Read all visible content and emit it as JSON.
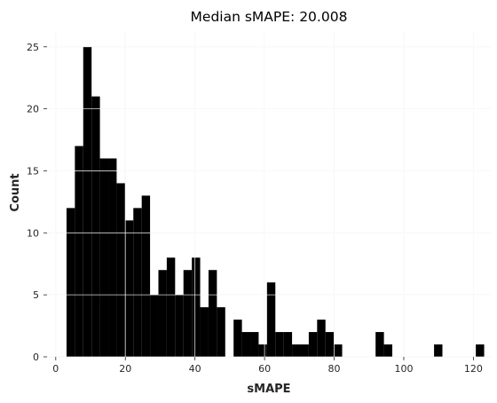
{
  "chart_data": {
    "type": "bar",
    "title": "Median sMAPE: 20.008",
    "xlabel": "sMAPE",
    "ylabel": "Count",
    "xlim": [
      -2.5,
      125
    ],
    "ylim": [
      0,
      26.2
    ],
    "xticks": [
      0,
      20,
      40,
      60,
      80,
      100,
      120
    ],
    "yticks": [
      0,
      5,
      10,
      15,
      20,
      25
    ],
    "grid": true,
    "bar_color": "#000000",
    "gridline_color": "#dcdcdc",
    "bin_width": 2.4,
    "bin_start": 3.1,
    "bins": [
      {
        "x0": 3.1,
        "x1": 5.5,
        "count": 12
      },
      {
        "x0": 5.5,
        "x1": 7.9,
        "count": 17
      },
      {
        "x0": 7.9,
        "x1": 10.3,
        "count": 25
      },
      {
        "x0": 10.3,
        "x1": 12.7,
        "count": 21
      },
      {
        "x0": 12.7,
        "x1": 15.1,
        "count": 16
      },
      {
        "x0": 15.1,
        "x1": 17.5,
        "count": 16
      },
      {
        "x0": 17.5,
        "x1": 19.9,
        "count": 14
      },
      {
        "x0": 19.9,
        "x1": 22.3,
        "count": 11
      },
      {
        "x0": 22.3,
        "x1": 24.7,
        "count": 12
      },
      {
        "x0": 24.7,
        "x1": 27.1,
        "count": 13
      },
      {
        "x0": 27.1,
        "x1": 29.5,
        "count": 5
      },
      {
        "x0": 29.5,
        "x1": 31.9,
        "count": 7
      },
      {
        "x0": 31.9,
        "x1": 34.3,
        "count": 8
      },
      {
        "x0": 34.3,
        "x1": 36.7,
        "count": 5
      },
      {
        "x0": 36.7,
        "x1": 39.1,
        "count": 7
      },
      {
        "x0": 39.1,
        "x1": 41.5,
        "count": 8
      },
      {
        "x0": 41.5,
        "x1": 43.9,
        "count": 4
      },
      {
        "x0": 43.9,
        "x1": 46.3,
        "count": 7
      },
      {
        "x0": 46.3,
        "x1": 48.7,
        "count": 4
      },
      {
        "x0": 48.7,
        "x1": 51.1,
        "count": 0
      },
      {
        "x0": 51.1,
        "x1": 53.5,
        "count": 3
      },
      {
        "x0": 53.5,
        "x1": 55.9,
        "count": 2
      },
      {
        "x0": 55.9,
        "x1": 58.3,
        "count": 2
      },
      {
        "x0": 58.3,
        "x1": 60.7,
        "count": 1
      },
      {
        "x0": 60.7,
        "x1": 63.1,
        "count": 6
      },
      {
        "x0": 63.1,
        "x1": 65.5,
        "count": 2
      },
      {
        "x0": 65.5,
        "x1": 67.9,
        "count": 2
      },
      {
        "x0": 67.9,
        "x1": 70.3,
        "count": 1
      },
      {
        "x0": 70.3,
        "x1": 72.7,
        "count": 1
      },
      {
        "x0": 72.7,
        "x1": 75.1,
        "count": 2
      },
      {
        "x0": 75.1,
        "x1": 77.5,
        "count": 3
      },
      {
        "x0": 77.5,
        "x1": 79.9,
        "count": 2
      },
      {
        "x0": 79.9,
        "x1": 82.3,
        "count": 1
      },
      {
        "x0": 91.9,
        "x1": 94.3,
        "count": 2
      },
      {
        "x0": 94.3,
        "x1": 96.7,
        "count": 1
      },
      {
        "x0": 108.7,
        "x1": 111.1,
        "count": 1
      },
      {
        "x0": 120.7,
        "x1": 123.1,
        "count": 1
      }
    ]
  }
}
